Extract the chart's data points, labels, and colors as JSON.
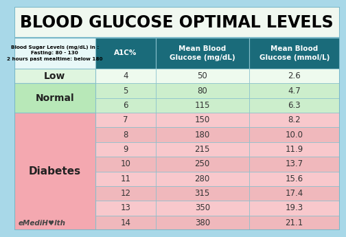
{
  "title": "BLOOD GLUCOSE OPTIMAL LEVELS",
  "title_fontsize": 17,
  "background_color": "#a8d8e8",
  "header_bg": "#1a6b7a",
  "header_text_color": "#FFFFFF",
  "header_col0_text": "Blood Sugar Levels (mg/dL) in :\nFasting: 80 - 130\n2 hours past mealtime: below 180",
  "col_headers": [
    "A1C%",
    "Mean Blood\nGlucose (mg/dL)",
    "Mean Blood\nGlucose (mmol/L)"
  ],
  "rows": [
    {
      "cat": "Low",
      "a1c": "4",
      "mgdl": "50",
      "mmol": "2.6"
    },
    {
      "cat": "Normal",
      "a1c": "5",
      "mgdl": "80",
      "mmol": "4.7"
    },
    {
      "cat": "Normal",
      "a1c": "6",
      "mgdl": "115",
      "mmol": "6.3"
    },
    {
      "cat": "Diabetes",
      "a1c": "7",
      "mgdl": "150",
      "mmol": "8.2"
    },
    {
      "cat": "Diabetes",
      "a1c": "8",
      "mgdl": "180",
      "mmol": "10.0"
    },
    {
      "cat": "Diabetes",
      "a1c": "9",
      "mgdl": "215",
      "mmol": "11.9"
    },
    {
      "cat": "Diabetes",
      "a1c": "10",
      "mgdl": "250",
      "mmol": "13.7"
    },
    {
      "cat": "Diabetes",
      "a1c": "11",
      "mgdl": "280",
      "mmol": "15.6"
    },
    {
      "cat": "Diabetes",
      "a1c": "12",
      "mgdl": "315",
      "mmol": "17.4"
    },
    {
      "cat": "Diabetes",
      "a1c": "13",
      "mgdl": "350",
      "mmol": "19.3"
    },
    {
      "cat": "Diabetes",
      "a1c": "14",
      "mgdl": "380",
      "mmol": "21.1"
    }
  ],
  "watermark": "eMediH♥lth",
  "title_bg": "#f0f8f0",
  "low_cat_bg": "#dff5df",
  "normal_cat_bg": "#b8e8b8",
  "diabetes_cat_bg": "#f4a8b0",
  "low_data_bg": "#eefaee",
  "normal_data_bg": "#cceecc",
  "diabetes_data_bg_1": "#f8c8cc",
  "diabetes_data_bg_2": "#f0b8bc",
  "border_color": "#7ab8c8",
  "cell_border": "#88c0cc",
  "header_col0_bg": "#e8f8f8"
}
